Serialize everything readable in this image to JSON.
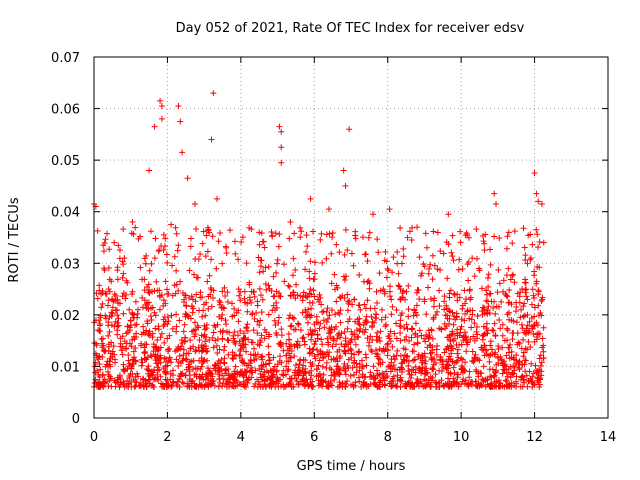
{
  "chart_data": {
    "type": "scatter",
    "title": "Day 052 of 2021, Rate Of TEC Index for receiver edsv",
    "xlabel": "GPS time / hours",
    "ylabel": "ROTI / TECUs",
    "xlim": [
      0,
      14
    ],
    "ylim": [
      0,
      0.07
    ],
    "x_ticks": [
      "0",
      "2",
      "4",
      "6",
      "8",
      "10",
      "12",
      "14"
    ],
    "y_ticks": [
      "0",
      "0.01",
      "0.02",
      "0.03",
      "0.04",
      "0.05",
      "0.06",
      "0.07"
    ],
    "grid": true,
    "marker": "+",
    "color": "#ff0000",
    "series": [
      {
        "x_range": [
          0.0,
          12.25
        ],
        "points_sample": [
          [
            0.0,
            0.0415
          ],
          [
            0.05,
            0.041
          ],
          [
            0.15,
            0.012
          ],
          [
            0.25,
            0.0335
          ],
          [
            0.4,
            0.025
          ],
          [
            0.55,
            0.034
          ],
          [
            0.8,
            0.028
          ],
          [
            1.05,
            0.038
          ],
          [
            1.5,
            0.048
          ],
          [
            1.65,
            0.0565
          ],
          [
            1.8,
            0.0615
          ],
          [
            1.85,
            0.0605
          ],
          [
            1.85,
            0.058
          ],
          [
            2.1,
            0.0375
          ],
          [
            2.3,
            0.0605
          ],
          [
            2.35,
            0.0575
          ],
          [
            2.4,
            0.0515
          ],
          [
            2.55,
            0.0465
          ],
          [
            2.75,
            0.0415
          ],
          [
            3.25,
            0.063
          ],
          [
            3.2,
            0.054
          ],
          [
            3.35,
            0.0425
          ],
          [
            3.6,
            0.033
          ],
          [
            4.0,
            0.009
          ],
          [
            4.5,
            0.036
          ],
          [
            5.05,
            0.0565
          ],
          [
            5.1,
            0.0555
          ],
          [
            5.1,
            0.0525
          ],
          [
            5.1,
            0.0495
          ],
          [
            5.35,
            0.038
          ],
          [
            5.9,
            0.0425
          ],
          [
            6.4,
            0.0405
          ],
          [
            6.8,
            0.048
          ],
          [
            6.85,
            0.045
          ],
          [
            6.95,
            0.056
          ],
          [
            7.6,
            0.0395
          ],
          [
            8.05,
            0.0405
          ],
          [
            8.8,
            0.037
          ],
          [
            9.65,
            0.0395
          ],
          [
            10.3,
            0.031
          ],
          [
            10.9,
            0.0435
          ],
          [
            10.95,
            0.0415
          ],
          [
            11.3,
            0.036
          ],
          [
            11.9,
            0.031
          ],
          [
            12.0,
            0.0475
          ],
          [
            12.05,
            0.0435
          ],
          [
            12.1,
            0.042
          ],
          [
            12.2,
            0.0415
          ],
          [
            12.25,
            0.034
          ]
        ],
        "typical_band": [
          0.006,
          0.025
        ]
      }
    ]
  }
}
